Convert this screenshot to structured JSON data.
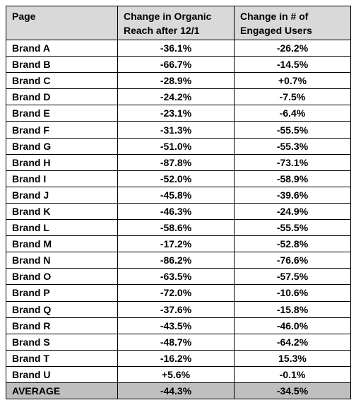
{
  "chart_data": {
    "type": "table",
    "columns": [
      "Page",
      "Change in Organic Reach after 12/1",
      "Change in # of Engaged Users"
    ],
    "header_lines": [
      [
        "Page"
      ],
      [
        "Change in Organic",
        "Reach after 12/1"
      ],
      [
        "Change in # of",
        "Engaged Users"
      ]
    ],
    "rows": [
      [
        "Brand A",
        "-36.1%",
        "-26.2%"
      ],
      [
        "Brand B",
        "-66.7%",
        "-14.5%"
      ],
      [
        "Brand C",
        "-28.9%",
        "+0.7%"
      ],
      [
        "Brand D",
        "-24.2%",
        "-7.5%"
      ],
      [
        "Brand E",
        "-23.1%",
        "-6.4%"
      ],
      [
        "Brand F",
        "-31.3%",
        "-55.5%"
      ],
      [
        "Brand G",
        "-51.0%",
        "-55.3%"
      ],
      [
        "Brand H",
        "-87.8%",
        "-73.1%"
      ],
      [
        "Brand I",
        "-52.0%",
        "-58.9%"
      ],
      [
        "Brand J",
        "-45.8%",
        "-39.6%"
      ],
      [
        "Brand K",
        "-46.3%",
        "-24.9%"
      ],
      [
        "Brand L",
        "-58.6%",
        "-55.5%"
      ],
      [
        "Brand M",
        "-17.2%",
        "-52.8%"
      ],
      [
        "Brand N",
        "-86.2%",
        "-76.6%"
      ],
      [
        "Brand O",
        "-63.5%",
        "-57.5%"
      ],
      [
        "Brand P",
        "-72.0%",
        "-10.6%"
      ],
      [
        "Brand Q",
        "-37.6%",
        "-15.8%"
      ],
      [
        "Brand R",
        "-43.5%",
        "-46.0%"
      ],
      [
        "Brand S",
        "-48.7%",
        "-64.2%"
      ],
      [
        "Brand T",
        "-16.2%",
        "15.3%"
      ],
      [
        "Brand U",
        "+5.6%",
        "-0.1%"
      ]
    ],
    "average_row": [
      "AVERAGE",
      "-44.3%",
      "-34.5%"
    ],
    "colors": {
      "header_fill": "#d9d9d9",
      "average_fill": "#bfbfbf",
      "border": "#000000"
    }
  }
}
